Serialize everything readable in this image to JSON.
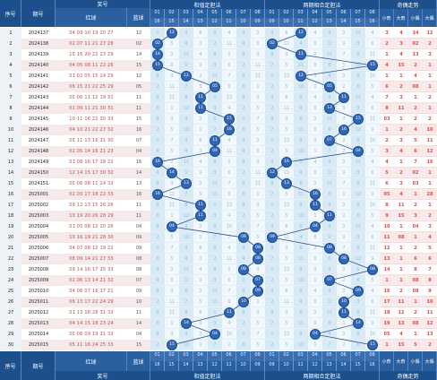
{
  "headers": {
    "seq": "序号",
    "issue": "期号",
    "prize_group": "奖号",
    "red": "红球",
    "blue": "蓝球",
    "section1": "和值定胆法",
    "section2": "两期相合定胆法",
    "section3": "奇偶走势",
    "odd_cols": [
      "小奇",
      "大奇",
      "小偶",
      "大偶"
    ],
    "num_row_top1": [
      "01",
      "02",
      "03",
      "04",
      "05",
      "06",
      "07",
      "08"
    ],
    "num_row_bot1": [
      "16",
      "15",
      "14",
      "13",
      "12",
      "11",
      "10",
      "09"
    ],
    "num_row_top2": [
      "01",
      "02",
      "03",
      "04",
      "05",
      "06",
      "07",
      "08"
    ],
    "num_row_bot2": [
      "09",
      "10",
      "11",
      "12",
      "13",
      "14",
      "15",
      "16"
    ],
    "hint_icon": "filter-icon"
  },
  "rows": [
    {
      "seq": "1",
      "issue": "2024137",
      "red": "04 09 10 19 20 27",
      "blue": "12",
      "p1": 1,
      "p1v": "12",
      "p2": 2,
      "p2v": "12",
      "odd": [
        "3",
        "4",
        "14",
        "12"
      ]
    },
    {
      "seq": "2",
      "issue": "2024138",
      "red": "02 07 11 21 27 28",
      "blue": "02",
      "p1": -1,
      "p1v": "02",
      "p2": 0,
      "p2v": "02",
      "odd": [
        "2",
        "3",
        "02",
        "2"
      ]
    },
    {
      "seq": "3",
      "issue": "2024139",
      "red": "15 16 20 22 23 29",
      "blue": "14",
      "p1": 0,
      "p1v": "14",
      "p2": 2,
      "p2v": "11",
      "odd": [
        "1",
        "4",
        "13",
        "3"
      ]
    },
    {
      "seq": "4",
      "issue": "2024140",
      "red": "04 05 08 11 22 26",
      "blue": "15",
      "p1": -1,
      "p1v": "15",
      "p2": 7,
      "p2v": "15",
      "odd": [
        "4",
        "15",
        "2",
        "1"
      ]
    },
    {
      "seq": "5",
      "issue": "2024141",
      "red": "01 02 05 15 24 29",
      "blue": "12",
      "p1": 2,
      "p1v": "12",
      "p2": 2,
      "p2v": "12",
      "odd": [
        "1",
        "1",
        "4",
        "1"
      ]
    },
    {
      "seq": "6",
      "issue": "2024142",
      "red": "06 15 21 22 25 29",
      "blue": "05",
      "p1": 4,
      "p1v": "05",
      "p2": 4,
      "p2v": "05",
      "odd": [
        "6",
        "2",
        "08",
        "1"
      ]
    },
    {
      "seq": "7",
      "issue": "2024143",
      "red": "05 06 11 12 19 31",
      "blue": "11",
      "p1": 3,
      "p1v": "11",
      "p2": 5,
      "p2v": "11",
      "odd": [
        "7",
        "3",
        "1",
        "2"
      ]
    },
    {
      "seq": "8",
      "issue": "2024144",
      "red": "01 09 11 21 30 31",
      "blue": "11",
      "p1": 3,
      "p1v": "11",
      "p2": 4,
      "p2v": "13",
      "odd": [
        "8",
        "11",
        "2",
        "1"
      ]
    },
    {
      "seq": "9",
      "issue": "2024145",
      "red": "10 11 16 22 30 33",
      "blue": "15",
      "p1": 5,
      "p1v": "15",
      "p2": 6,
      "p2v": "15",
      "odd": [
        "03",
        "1",
        "2",
        "2"
      ]
    },
    {
      "seq": "10",
      "issue": "2024146",
      "red": "04 10 21 22 27 32",
      "blue": "16",
      "p1": 5,
      "p1v": "16",
      "p2": 5,
      "p2v": "16",
      "odd": [
        "1",
        "2",
        "4",
        "10"
      ]
    },
    {
      "seq": "11",
      "issue": "2024147",
      "red": "05 11 13 16 21 30",
      "blue": "07",
      "p1": 4,
      "p1v": "11",
      "p2": 4,
      "p2v": "07",
      "odd": [
        "2",
        "3",
        "5",
        "11"
      ]
    },
    {
      "seq": "12",
      "issue": "2024148",
      "red": "02 05 14 16 21 23",
      "blue": "04",
      "p1": 4,
      "p1v": "04",
      "p2": 6,
      "p2v": "04",
      "odd": [
        "3",
        "4",
        "6",
        "12"
      ]
    },
    {
      "seq": "13",
      "issue": "2024149",
      "red": "03 08 16 17 18 22",
      "blue": "16",
      "p1": -1,
      "p1v": "16",
      "p2": 1,
      "p2v": "16",
      "odd": [
        "4",
        "1",
        "7",
        "16"
      ]
    },
    {
      "seq": "14",
      "issue": "2024150",
      "red": "12 14 15 17 30 32",
      "blue": "14",
      "p1": 1,
      "p1v": "14",
      "p2": 0,
      "p2v": "12",
      "odd": [
        "5",
        "2",
        "02",
        "1"
      ]
    },
    {
      "seq": "15",
      "issue": "2024151",
      "red": "05 06 08 11 24 32",
      "blue": "13",
      "p1": 2,
      "p1v": "13",
      "p2": 1,
      "p2v": "13",
      "odd": [
        "6",
        "3",
        "03",
        "1"
      ]
    },
    {
      "seq": "16",
      "issue": "2025001",
      "red": "02 03 17 18 22 33",
      "blue": "16",
      "p1": -1,
      "p1v": "16",
      "p2": 3,
      "p2v": "16",
      "odd": [
        "05",
        "4",
        "1",
        "28"
      ]
    },
    {
      "seq": "17",
      "issue": "2025002",
      "red": "09 12 13 15 26 26",
      "blue": "11",
      "p1": 3,
      "p1v": "11",
      "p2": 3,
      "p2v": "11",
      "odd": [
        "8",
        "11",
        "2",
        "1"
      ]
    },
    {
      "seq": "18",
      "issue": "2025003",
      "red": "10 19 20 26 28 29",
      "blue": "11",
      "p1": 3,
      "p1v": "11",
      "p2": 4,
      "p2v": "11",
      "odd": [
        "9",
        "15",
        "3",
        "2"
      ]
    },
    {
      "seq": "19",
      "issue": "2025004",
      "red": "03 05 08 12 20 26",
      "blue": "04",
      "p1": 1,
      "p1v": "04",
      "p2": 3,
      "p2v": "04",
      "odd": [
        "10",
        "1",
        "04",
        "3"
      ]
    },
    {
      "seq": "20",
      "issue": "2025005",
      "red": "10 16 19 21 28 30",
      "blue": "09",
      "p1": 6,
      "p1v": "09",
      "p2": 0,
      "p2v": "09",
      "odd": [
        "11",
        "08",
        "1",
        "4"
      ]
    },
    {
      "seq": "21",
      "issue": "2025006",
      "red": "04 07 08 12 19 22",
      "blue": "09",
      "p1": 8,
      "p1v": "08",
      "p2": 4,
      "p2v": "08",
      "odd": [
        "12",
        "1",
        "2",
        "5"
      ]
    },
    {
      "seq": "22",
      "issue": "2025007",
      "red": "08 09 14 21 27 33",
      "blue": "08",
      "p1": 7,
      "p1v": "08",
      "p2": 5,
      "p2v": "08",
      "odd": [
        "13",
        "1",
        "6",
        "6"
      ]
    },
    {
      "seq": "23",
      "issue": "2025008",
      "red": "09 14 16 17 25 33",
      "blue": "08",
      "p1": 6,
      "p1v": "08",
      "p2": 7,
      "p2v": "08",
      "odd": [
        "14",
        "1",
        "8",
        "7"
      ]
    },
    {
      "seq": "24",
      "issue": "2025009",
      "red": "02 06 13 14 21 32",
      "blue": "07",
      "p1": 7,
      "p1v": "07",
      "p2": 4,
      "p2v": "07",
      "odd": [
        "1",
        "1",
        "08",
        "8"
      ]
    },
    {
      "seq": "25",
      "issue": "2025010",
      "red": "04 06 07 16 17 21",
      "blue": "09",
      "p1": 7,
      "p1v": "09",
      "p2": 6,
      "p2v": "09",
      "odd": [
        "16",
        "2",
        "08",
        "9"
      ]
    },
    {
      "seq": "26",
      "issue": "2025011",
      "red": "06 13 17 22 24 29",
      "blue": "10",
      "p1": 6,
      "p1v": "10",
      "p2": 5,
      "p2v": "10",
      "odd": [
        "17",
        "11",
        "1",
        "10"
      ]
    },
    {
      "seq": "27",
      "issue": "2025012",
      "red": "01 13 18 28 31 32",
      "blue": "11",
      "p1": 5,
      "p1v": "11",
      "p2": 5,
      "p2v": "11",
      "odd": [
        "18",
        "12",
        "2",
        "11"
      ]
    },
    {
      "seq": "28",
      "issue": "2025013",
      "red": "04 14 15 18 23 24",
      "blue": "14",
      "p1": 2,
      "p1v": "14",
      "p2": 6,
      "p2v": "14",
      "odd": [
        "19",
        "13",
        "08",
        "12"
      ]
    },
    {
      "seq": "29",
      "issue": "2025014",
      "red": "05 06 09 19 21 32",
      "blue": "04",
      "p1": 4,
      "p1v": "04",
      "p2": 3,
      "p2v": "04",
      "odd": [
        "05",
        "4",
        "1",
        "13"
      ]
    },
    {
      "seq": "30",
      "issue": "2025015",
      "red": "05 11 16 24 25 33",
      "blue": "15",
      "p1": 1,
      "p1v": "15",
      "p2": 7,
      "p2v": "15",
      "odd": [
        "1",
        "15",
        "5",
        "2"
      ]
    }
  ],
  "grid_numbers": [
    "1",
    "7",
    "2",
    "6",
    "5",
    "4",
    "3",
    "2",
    "11",
    "4",
    "8",
    "1",
    "9",
    "3",
    "6",
    "2",
    "11",
    "7",
    "5",
    "11",
    "8",
    "6",
    "1",
    "12",
    "9",
    "3",
    "4",
    "2",
    "5",
    "10"
  ]
}
